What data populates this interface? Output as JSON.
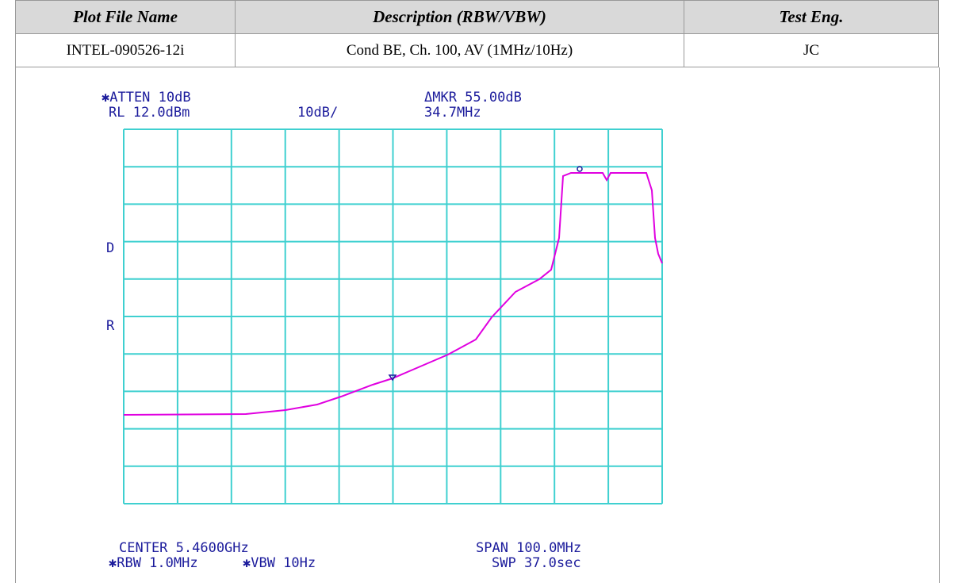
{
  "table": {
    "header": [
      "Plot File Name",
      "Description (RBW/VBW)",
      "Test Eng."
    ],
    "rows": [
      [
        "INTEL-090526-12i",
        "Cond BE, Ch. 100, AV (1MHz/10Hz)",
        "JC"
      ]
    ]
  },
  "plot": {
    "atten": "✱ATTEN 10dB",
    "rl": "RL 12.0dBm",
    "scale": "10dB/",
    "mkr": "ΔMKR 55.00dB",
    "mkr_freq": "34.7MHz",
    "d": "D",
    "r": "R",
    "center": "CENTER 5.4600GHz",
    "rbw": "✱RBW 1.0MHz",
    "vbw": "✱VBW 10Hz",
    "span": "SPAN 100.0MHz",
    "swp": "SWP 37.0sec"
  }
}
